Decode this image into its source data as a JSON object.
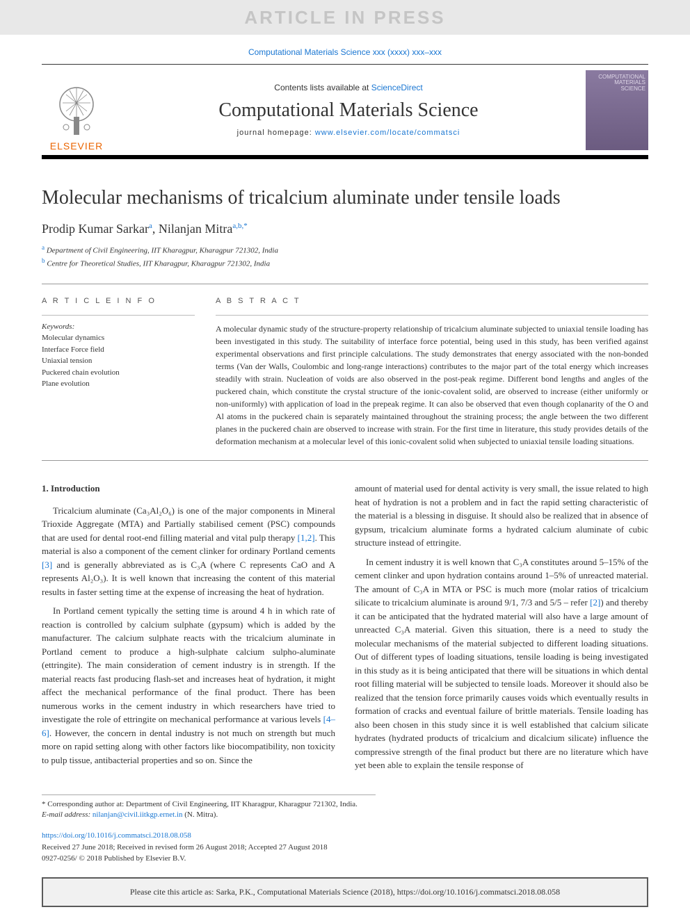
{
  "banner": "ARTICLE IN PRESS",
  "journal_ref": {
    "text": "Computational Materials Science xxx (xxxx) xxx–xxx"
  },
  "header": {
    "publisher_word": "ELSEVIER",
    "contents_prefix": "Contents lists available at ",
    "contents_link": "ScienceDirect",
    "journal_name": "Computational Materials Science",
    "homepage_prefix": "journal homepage: ",
    "homepage_link": "www.elsevier.com/locate/commatsci",
    "cover_title": "COMPUTATIONAL MATERIALS SCIENCE"
  },
  "title": "Molecular mechanisms of tricalcium aluminate under tensile loads",
  "authors_html": "Prodip Kumar Sarkar<sup>a</sup>, Nilanjan Mitra<sup>a,b,*</sup>",
  "affiliations": [
    {
      "sup": "a",
      "text": "Department of Civil Engineering, IIT Kharagpur, Kharagpur 721302, India"
    },
    {
      "sup": "b",
      "text": "Centre for Theoretical Studies, IIT Kharagpur, Kharagpur 721302, India"
    }
  ],
  "article_info": {
    "heading": "A R T I C L E  I N F O",
    "kw_heading": "Keywords:",
    "keywords": [
      "Molecular dynamics",
      "Interface Force field",
      "Uniaxial tension",
      "Puckered chain evolution",
      "Plane evolution"
    ]
  },
  "abstract": {
    "heading": "A B S T R A C T",
    "text": "A molecular dynamic study of the structure-property relationship of tricalcium aluminate subjected to uniaxial tensile loading has been investigated in this study. The suitability of interface force potential, being used in this study, has been verified against experimental observations and first principle calculations. The study demonstrates that energy associated with the non-bonded terms (Van der Walls, Coulombic and long-range interactions) contributes to the major part of the total energy which increases steadily with strain. Nucleation of voids are also observed in the post-peak regime. Different bond lengths and angles of the puckered chain, which constitute the crystal structure of the ionic-covalent solid, are observed to increase (either uniformly or non-uniformly) with application of load in the prepeak regime. It can also be observed that even though coplanarity of the O and Al atoms in the puckered chain is separately maintained throughout the straining process; the angle between the two different planes in the puckered chain are observed to increase with strain. For the first time in literature, this study provides details of the deformation mechanism at a molecular level of this ionic-covalent solid when subjected to uniaxial tensile loading situations."
  },
  "section1_heading": "1. Introduction",
  "para_left_1_pre": "Tricalcium aluminate (Ca₃Al₂O₆) is one of the major components in Mineral Trioxide Aggregate (MTA) and Partially stabilised cement (PSC) compounds that are used for dental root-end filling material and vital pulp therapy ",
  "ref12": "[1,2]",
  "para_left_1_mid": ". This material is also a component of the cement clinker for ordinary Portland cements ",
  "ref3": "[3]",
  "para_left_1_post": " and is generally abbreviated as is C₃A (where C represents CaO and A represents Al₂O₃). It is well known that increasing the content of this material results in faster setting time at the expense of increasing the heat of hydration.",
  "para_left_2_pre": "In Portland cement typically the setting time is around 4 h in which rate of reaction is controlled by calcium sulphate (gypsum) which is added by the manufacturer. The calcium sulphate reacts with the tricalcium aluminate in Portland cement to produce a high-sulphate calcium sulpho-aluminate (ettringite). The main consideration of cement industry is in strength. If the material reacts fast producing flash-set and increases heat of hydration, it might affect the mechanical performance of the final product. There has been numerous works in the cement industry in which researchers have tried to investigate the role of ettringite on mechanical performance at various levels ",
  "ref46": "[4–6]",
  "para_left_2_post": ". However, the concern in dental industry is not much on strength but much more on rapid setting along with other factors like biocompatibility, non toxicity to pulp tissue, antibacterial properties and so on. Since the",
  "para_right_1": "amount of material used for dental activity is very small, the issue related to high heat of hydration is not a problem and in fact the rapid setting characteristic of the material is a blessing in disguise. It should also be realized that in absence of gypsum, tricalcium aluminate forms a hydrated calcium aluminate of cubic structure instead of ettringite.",
  "para_right_2_pre": "In cement industry it is well known that C₃A constitutes around 5–15% of the cement clinker and upon hydration contains around 1–5% of unreacted material. The amount of C₃A in MTA or PSC is much more (molar ratios of tricalcium silicate to tricalcium aluminate is around 9/1, 7/3 and 5/5 – refer ",
  "ref2": "[2]",
  "para_right_2_post": ") and thereby it can be anticipated that the hydrated material will also have a large amount of unreacted C₃A material. Given this situation, there is a need to study the molecular mechanisms of the material subjected to different loading situations. Out of different types of loading situations, tensile loading is being investigated in this study as it is being anticipated that there will be situations in which dental root filling material will be subjected to tensile loads. Moreover it should also be realized that the tension force primarily causes voids which eventually results in formation of cracks and eventual failure of brittle materials. Tensile loading has also been chosen in this study since it is well established that calcium silicate hydrates (hydrated products of tricalcium and dicalcium silicate) influence the compressive strength of the final product but there are no literature which have yet been able to explain the tensile response of",
  "footnote": {
    "corr": "* Corresponding author at: Department of Civil Engineering, IIT Kharagpur, Kharagpur 721302, India.",
    "email_label": "E-mail address: ",
    "email": "nilanjan@civil.iitkgp.ernet.in",
    "email_name": " (N. Mitra)."
  },
  "doi": {
    "link": "https://doi.org/10.1016/j.commatsci.2018.08.058",
    "received": "Received 27 June 2018; Received in revised form 26 August 2018; Accepted 27 August 2018",
    "copyright": "0927-0256/ © 2018 Published by Elsevier B.V."
  },
  "citation": "Please cite this article as: Sarka, P.K., Computational Materials Science (2018), https://doi.org/10.1016/j.commatsci.2018.08.058",
  "colors": {
    "link": "#1976d2",
    "banner_bg": "#e8e8e8",
    "banner_fg": "#c5c5c5",
    "elsevier_orange": "#EB6500",
    "citation_bg": "#f1f1f1"
  }
}
